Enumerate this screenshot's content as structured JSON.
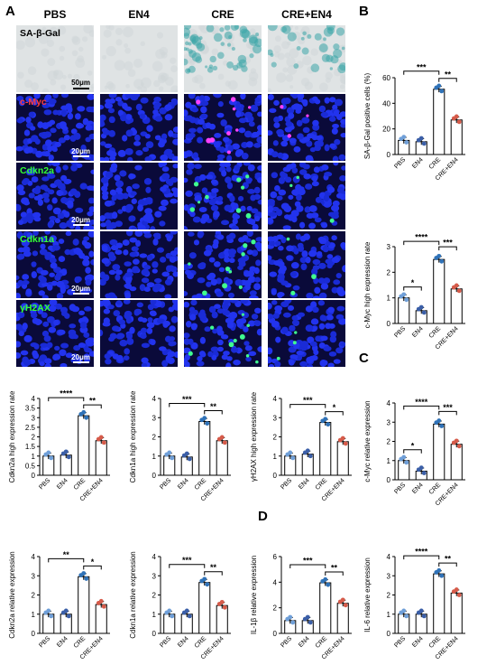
{
  "panels": {
    "A": "A",
    "B": "B",
    "C": "C",
    "D": "D"
  },
  "columns": [
    "PBS",
    "EN4",
    "CRE",
    "CRE+EN4"
  ],
  "micrographs": {
    "rows": [
      {
        "label": "SA-β-Gal",
        "label_color": "#000000",
        "scale": "50μm",
        "type": "brightfield"
      },
      {
        "label": "c-Myc",
        "label_color": "#ff3b3b",
        "scale": "20μm",
        "type": "fluor",
        "spot_color": "#ff40ff"
      },
      {
        "label": "Cdkn2a",
        "label_color": "#33ff33",
        "scale": "20μm",
        "type": "fluor",
        "spot_color": "#40ff90"
      },
      {
        "label": "Cdkn1a",
        "label_color": "#33ff33",
        "scale": "20μm",
        "type": "fluor",
        "spot_color": "#40ff90"
      },
      {
        "label": "γH2AX",
        "label_color": "#33ff33",
        "scale": "20μm",
        "type": "fluor",
        "spot_color": "#40ff90"
      }
    ]
  },
  "chart_data": [
    {
      "id": "b1",
      "type": "bar",
      "ylabel": "SA-β-Gal positive cells (%)",
      "categories": [
        "PBS",
        "EN4",
        "CRE",
        "CRE+EN4"
      ],
      "values": [
        11,
        10,
        51,
        27
      ],
      "ylim": [
        0,
        60
      ],
      "yticks": [
        0,
        20,
        40,
        60
      ],
      "sig": [
        {
          "from": 0,
          "to": 2,
          "label": "***"
        },
        {
          "from": 2,
          "to": 3,
          "label": "**"
        }
      ]
    },
    {
      "id": "b2",
      "type": "bar",
      "ylabel": "c-Myc high expression rate",
      "categories": [
        "PBS",
        "EN4",
        "CRE",
        "CRE+EN4"
      ],
      "values": [
        1.0,
        0.5,
        2.5,
        1.35
      ],
      "ylim": [
        0,
        3
      ],
      "yticks": [
        0,
        1,
        2,
        3
      ],
      "sig": [
        {
          "from": 0,
          "to": 2,
          "label": "****"
        },
        {
          "from": 0,
          "to": 1,
          "label": "*"
        },
        {
          "from": 2,
          "to": 3,
          "label": "***"
        }
      ]
    },
    {
      "id": "a1",
      "type": "bar",
      "ylabel": "Cdkn2a high expression rate",
      "categories": [
        "PBS",
        "EN4",
        "CRE",
        "CRE+EN4"
      ],
      "values": [
        1.0,
        1.05,
        3.1,
        1.8
      ],
      "ylim": [
        0,
        4
      ],
      "yticks": [
        0,
        0.5,
        1,
        1.5,
        2,
        2.5,
        3,
        3.5,
        4
      ],
      "sig": [
        {
          "from": 0,
          "to": 2,
          "label": "****"
        },
        {
          "from": 2,
          "to": 3,
          "label": "**"
        }
      ]
    },
    {
      "id": "a2",
      "type": "bar",
      "ylabel": "Cdkn1a high expression rate",
      "categories": [
        "PBS",
        "EN4",
        "CRE",
        "CRE+EN4"
      ],
      "values": [
        1.0,
        0.95,
        2.8,
        1.8
      ],
      "ylim": [
        0,
        4
      ],
      "yticks": [
        0,
        1,
        2,
        3,
        4
      ],
      "sig": [
        {
          "from": 0,
          "to": 2,
          "label": "***"
        },
        {
          "from": 2,
          "to": 3,
          "label": "**"
        }
      ]
    },
    {
      "id": "a3",
      "type": "bar",
      "ylabel": "γH2AX high expression rate",
      "categories": [
        "PBS",
        "EN4",
        "CRE",
        "CRE+EN4"
      ],
      "values": [
        1.0,
        1.1,
        2.75,
        1.75
      ],
      "ylim": [
        0,
        4
      ],
      "yticks": [
        0,
        1,
        2,
        3,
        4
      ],
      "sig": [
        {
          "from": 0,
          "to": 2,
          "label": "***"
        },
        {
          "from": 2,
          "to": 3,
          "label": "*"
        }
      ]
    },
    {
      "id": "c1",
      "type": "bar",
      "ylabel": "c-Myc relative expression",
      "categories": [
        "PBS",
        "EN4",
        "CRE",
        "CRE+EN4"
      ],
      "values": [
        1.0,
        0.45,
        2.9,
        1.85
      ],
      "ylim": [
        0,
        4
      ],
      "yticks": [
        0,
        1,
        2,
        3,
        4
      ],
      "sig": [
        {
          "from": 0,
          "to": 2,
          "label": "****"
        },
        {
          "from": 0,
          "to": 1,
          "label": "*"
        },
        {
          "from": 2,
          "to": 3,
          "label": "***"
        }
      ]
    },
    {
      "id": "e1",
      "type": "bar",
      "ylabel": "Cdkn2a relative expression",
      "categories": [
        "PBS",
        "EN4",
        "CRE",
        "CRE+EN4"
      ],
      "values": [
        1.0,
        1.0,
        2.95,
        1.5
      ],
      "ylim": [
        0,
        4
      ],
      "yticks": [
        0,
        1,
        2,
        3,
        4
      ],
      "sig": [
        {
          "from": 0,
          "to": 2,
          "label": "**"
        },
        {
          "from": 2,
          "to": 3,
          "label": "*"
        }
      ]
    },
    {
      "id": "e2",
      "type": "bar",
      "ylabel": "Cdkn1a relative expression",
      "categories": [
        "PBS",
        "EN4",
        "CRE",
        "CRE+EN4"
      ],
      "values": [
        1.0,
        1.0,
        2.65,
        1.45
      ],
      "ylim": [
        0,
        4
      ],
      "yticks": [
        0,
        1,
        2,
        3,
        4
      ],
      "sig": [
        {
          "from": 0,
          "to": 2,
          "label": "***"
        },
        {
          "from": 2,
          "to": 3,
          "label": "**"
        }
      ]
    },
    {
      "id": "d1",
      "type": "bar",
      "ylabel": "IL-1β relative expression",
      "categories": [
        "PBS",
        "EN4",
        "CRE",
        "CRE+EN4"
      ],
      "values": [
        1.0,
        1.0,
        3.95,
        2.35
      ],
      "ylim": [
        0,
        6
      ],
      "yticks": [
        0,
        2,
        4,
        6
      ],
      "sig": [
        {
          "from": 0,
          "to": 2,
          "label": "***"
        },
        {
          "from": 2,
          "to": 3,
          "label": "**"
        }
      ]
    },
    {
      "id": "d2",
      "type": "bar",
      "ylabel": "IL-6 relative expression",
      "categories": [
        "PBS",
        "EN4",
        "CRE",
        "CRE+EN4"
      ],
      "values": [
        1.0,
        1.0,
        3.1,
        2.1
      ],
      "ylim": [
        0,
        4
      ],
      "yticks": [
        0,
        1,
        2,
        3,
        4
      ],
      "sig": [
        {
          "from": 0,
          "to": 2,
          "label": "****"
        },
        {
          "from": 2,
          "to": 3,
          "label": "**"
        }
      ]
    }
  ],
  "colors": {
    "bar_fill": "#ffffff",
    "bar_stroke": "#000000",
    "dot_colors": [
      "#6f9fd8",
      "#3b5fa8",
      "#2f72b8",
      "#d65b4a"
    ]
  }
}
